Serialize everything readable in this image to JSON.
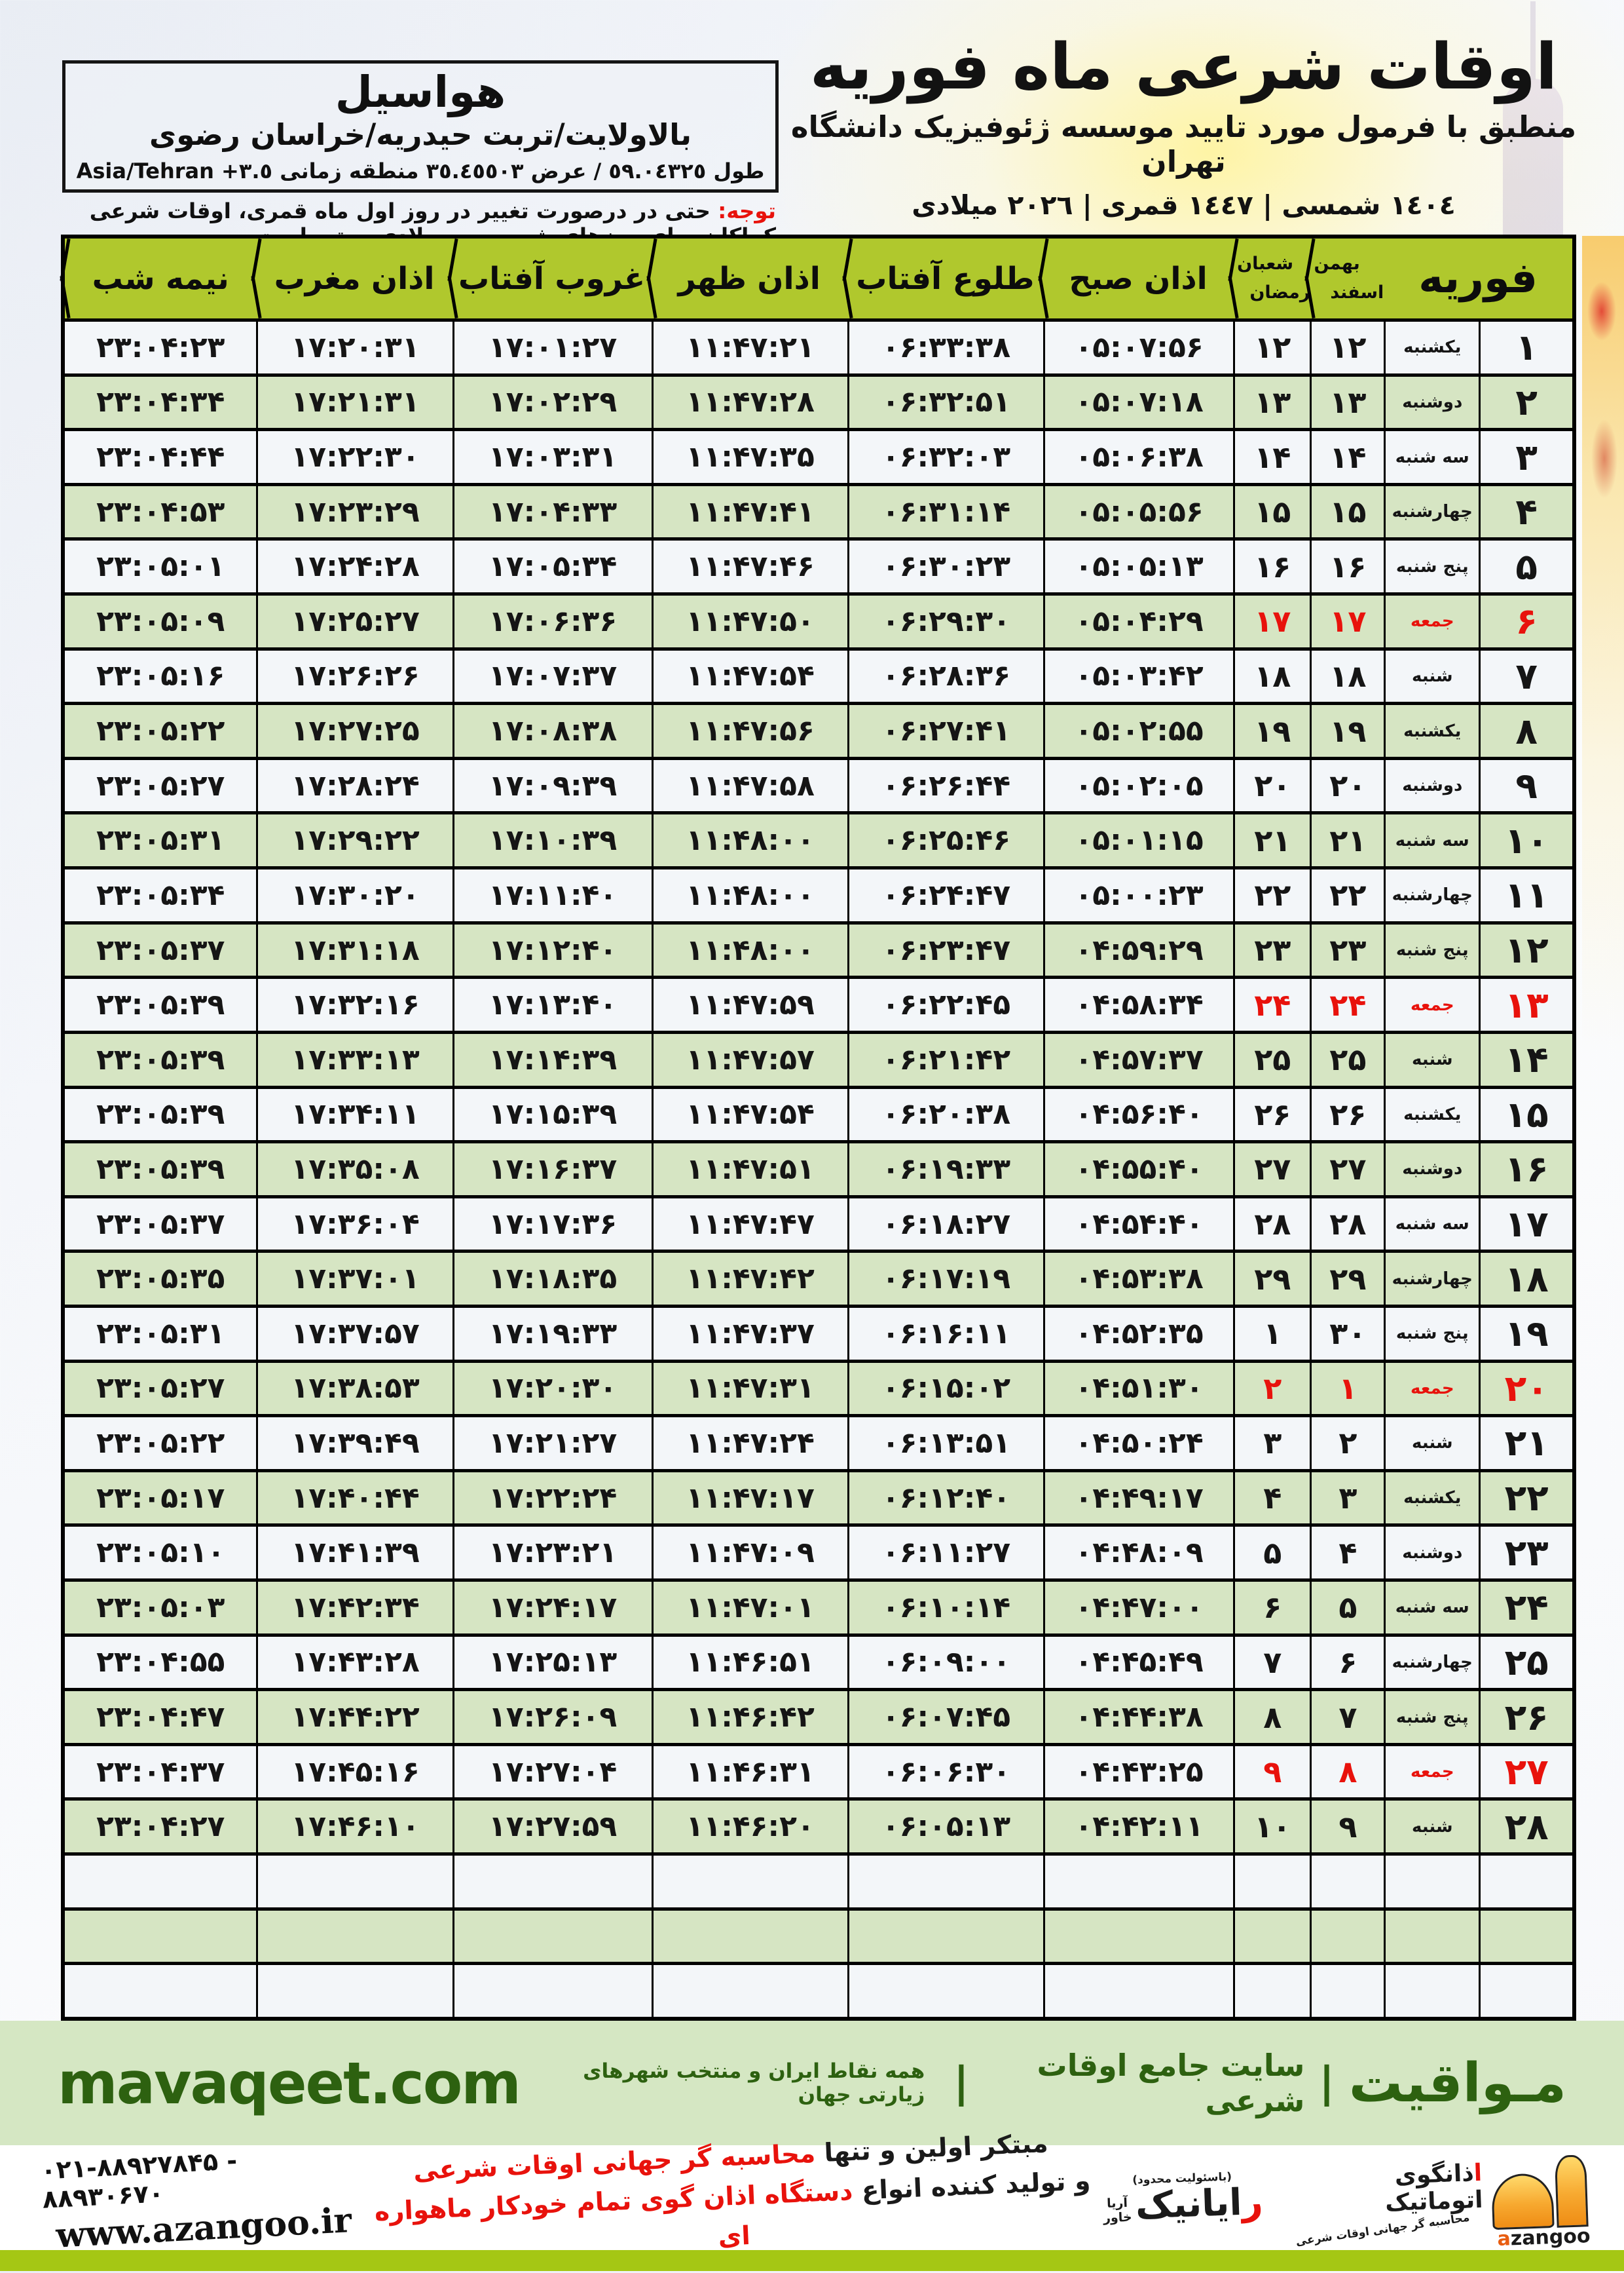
{
  "page": {
    "title": "اوقات شرعی ماه فوریه",
    "subtitle": "منطبق با فرمول مورد تایید موسسه ژئوفیزیک دانشگاه تهران",
    "calendars": "١٤٠٤ شمسی | ١٤٤٧ قمری | ٢٠٢٦ میلادی"
  },
  "location": {
    "name": "هواسیل",
    "region": "بالاولایت/تربت حیدریه/خراسان رضوی",
    "coords": "طول ٥٩.٠٤٣٢٥ / عرض ٣٥.٤٥٥٠٣ منطقه زمانی",
    "timezone": "Asia/Tehran +٣.٥"
  },
  "note": {
    "label": "توجه:",
    "text": " حتی در درصورت تغییر در روز اول ماه قمری، اوقات شرعی کماکان برای روزهای شمسی و میلادی معتبر است."
  },
  "table": {
    "col_feb": "فوریه",
    "col_jalali_top": "بهمن",
    "col_jalali_bottom": "اسفند",
    "col_hijri_top": "شعبان",
    "col_hijri_bottom": "رمضان",
    "col_azan_sobh": "اذان صبح",
    "col_sunrise": "طلوع آفتاب",
    "col_azan_zohr": "اذان ظهر",
    "col_sunset": "غروب آفتاب",
    "col_azan_maghreb": "اذان مغرب",
    "col_midnight": "نیمه شب",
    "empty_row_count": 3,
    "rows": [
      {
        "d": "۱",
        "wd": "یکشنبه",
        "j": "۱۲",
        "h": "۱۲",
        "sobh": "۰۵:۰۷:۵۶",
        "tolu": "۰۶:۳۳:۳۸",
        "zohr": "۱۱:۴۷:۲۱",
        "ghorub": "۱۷:۰۱:۲۷",
        "maghreb": "۱۷:۲۰:۳۱",
        "nime": "۲۳:۰۴:۲۳",
        "friday": false
      },
      {
        "d": "۲",
        "wd": "دوشنبه",
        "j": "۱۳",
        "h": "۱۳",
        "sobh": "۰۵:۰۷:۱۸",
        "tolu": "۰۶:۳۲:۵۱",
        "zohr": "۱۱:۴۷:۲۸",
        "ghorub": "۱۷:۰۲:۲۹",
        "maghreb": "۱۷:۲۱:۳۱",
        "nime": "۲۳:۰۴:۳۴",
        "friday": false
      },
      {
        "d": "۳",
        "wd": "سه شنبه",
        "j": "۱۴",
        "h": "۱۴",
        "sobh": "۰۵:۰۶:۳۸",
        "tolu": "۰۶:۳۲:۰۳",
        "zohr": "۱۱:۴۷:۳۵",
        "ghorub": "۱۷:۰۳:۳۱",
        "maghreb": "۱۷:۲۲:۳۰",
        "nime": "۲۳:۰۴:۴۴",
        "friday": false
      },
      {
        "d": "۴",
        "wd": "چهارشنبه",
        "j": "۱۵",
        "h": "۱۵",
        "sobh": "۰۵:۰۵:۵۶",
        "tolu": "۰۶:۳۱:۱۴",
        "zohr": "۱۱:۴۷:۴۱",
        "ghorub": "۱۷:۰۴:۳۳",
        "maghreb": "۱۷:۲۳:۲۹",
        "nime": "۲۳:۰۴:۵۳",
        "friday": false
      },
      {
        "d": "۵",
        "wd": "پنج شنبه",
        "j": "۱۶",
        "h": "۱۶",
        "sobh": "۰۵:۰۵:۱۳",
        "tolu": "۰۶:۳۰:۲۳",
        "zohr": "۱۱:۴۷:۴۶",
        "ghorub": "۱۷:۰۵:۳۴",
        "maghreb": "۱۷:۲۴:۲۸",
        "nime": "۲۳:۰۵:۰۱",
        "friday": false
      },
      {
        "d": "۶",
        "wd": "جمعه",
        "j": "۱۷",
        "h": "۱۷",
        "sobh": "۰۵:۰۴:۲۹",
        "tolu": "۰۶:۲۹:۳۰",
        "zohr": "۱۱:۴۷:۵۰",
        "ghorub": "۱۷:۰۶:۳۶",
        "maghreb": "۱۷:۲۵:۲۷",
        "nime": "۲۳:۰۵:۰۹",
        "friday": true
      },
      {
        "d": "۷",
        "wd": "شنبه",
        "j": "۱۸",
        "h": "۱۸",
        "sobh": "۰۵:۰۳:۴۲",
        "tolu": "۰۶:۲۸:۳۶",
        "zohr": "۱۱:۴۷:۵۴",
        "ghorub": "۱۷:۰۷:۳۷",
        "maghreb": "۱۷:۲۶:۲۶",
        "nime": "۲۳:۰۵:۱۶",
        "friday": false
      },
      {
        "d": "۸",
        "wd": "یکشنبه",
        "j": "۱۹",
        "h": "۱۹",
        "sobh": "۰۵:۰۲:۵۵",
        "tolu": "۰۶:۲۷:۴۱",
        "zohr": "۱۱:۴۷:۵۶",
        "ghorub": "۱۷:۰۸:۳۸",
        "maghreb": "۱۷:۲۷:۲۵",
        "nime": "۲۳:۰۵:۲۲",
        "friday": false
      },
      {
        "d": "۹",
        "wd": "دوشنبه",
        "j": "۲۰",
        "h": "۲۰",
        "sobh": "۰۵:۰۲:۰۵",
        "tolu": "۰۶:۲۶:۴۴",
        "zohr": "۱۱:۴۷:۵۸",
        "ghorub": "۱۷:۰۹:۳۹",
        "maghreb": "۱۷:۲۸:۲۴",
        "nime": "۲۳:۰۵:۲۷",
        "friday": false
      },
      {
        "d": "۱۰",
        "wd": "سه شنبه",
        "j": "۲۱",
        "h": "۲۱",
        "sobh": "۰۵:۰۱:۱۵",
        "tolu": "۰۶:۲۵:۴۶",
        "zohr": "۱۱:۴۸:۰۰",
        "ghorub": "۱۷:۱۰:۳۹",
        "maghreb": "۱۷:۲۹:۲۲",
        "nime": "۲۳:۰۵:۳۱",
        "friday": false
      },
      {
        "d": "۱۱",
        "wd": "چهارشنبه",
        "j": "۲۲",
        "h": "۲۲",
        "sobh": "۰۵:۰۰:۲۳",
        "tolu": "۰۶:۲۴:۴۷",
        "zohr": "۱۱:۴۸:۰۰",
        "ghorub": "۱۷:۱۱:۴۰",
        "maghreb": "۱۷:۳۰:۲۰",
        "nime": "۲۳:۰۵:۳۴",
        "friday": false
      },
      {
        "d": "۱۲",
        "wd": "پنج شنبه",
        "j": "۲۳",
        "h": "۲۳",
        "sobh": "۰۴:۵۹:۲۹",
        "tolu": "۰۶:۲۳:۴۷",
        "zohr": "۱۱:۴۸:۰۰",
        "ghorub": "۱۷:۱۲:۴۰",
        "maghreb": "۱۷:۳۱:۱۸",
        "nime": "۲۳:۰۵:۳۷",
        "friday": false
      },
      {
        "d": "۱۳",
        "wd": "جمعه",
        "j": "۲۴",
        "h": "۲۴",
        "sobh": "۰۴:۵۸:۳۴",
        "tolu": "۰۶:۲۲:۴۵",
        "zohr": "۱۱:۴۷:۵۹",
        "ghorub": "۱۷:۱۳:۴۰",
        "maghreb": "۱۷:۳۲:۱۶",
        "nime": "۲۳:۰۵:۳۹",
        "friday": true
      },
      {
        "d": "۱۴",
        "wd": "شنبه",
        "j": "۲۵",
        "h": "۲۵",
        "sobh": "۰۴:۵۷:۳۷",
        "tolu": "۰۶:۲۱:۴۲",
        "zohr": "۱۱:۴۷:۵۷",
        "ghorub": "۱۷:۱۴:۳۹",
        "maghreb": "۱۷:۳۳:۱۳",
        "nime": "۲۳:۰۵:۳۹",
        "friday": false
      },
      {
        "d": "۱۵",
        "wd": "یکشنبه",
        "j": "۲۶",
        "h": "۲۶",
        "sobh": "۰۴:۵۶:۴۰",
        "tolu": "۰۶:۲۰:۳۸",
        "zohr": "۱۱:۴۷:۵۴",
        "ghorub": "۱۷:۱۵:۳۹",
        "maghreb": "۱۷:۳۴:۱۱",
        "nime": "۲۳:۰۵:۳۹",
        "friday": false
      },
      {
        "d": "۱۶",
        "wd": "دوشنبه",
        "j": "۲۷",
        "h": "۲۷",
        "sobh": "۰۴:۵۵:۴۰",
        "tolu": "۰۶:۱۹:۳۳",
        "zohr": "۱۱:۴۷:۵۱",
        "ghorub": "۱۷:۱۶:۳۷",
        "maghreb": "۱۷:۳۵:۰۸",
        "nime": "۲۳:۰۵:۳۹",
        "friday": false
      },
      {
        "d": "۱۷",
        "wd": "سه شنبه",
        "j": "۲۸",
        "h": "۲۸",
        "sobh": "۰۴:۵۴:۴۰",
        "tolu": "۰۶:۱۸:۲۷",
        "zohr": "۱۱:۴۷:۴۷",
        "ghorub": "۱۷:۱۷:۳۶",
        "maghreb": "۱۷:۳۶:۰۴",
        "nime": "۲۳:۰۵:۳۷",
        "friday": false
      },
      {
        "d": "۱۸",
        "wd": "چهارشنبه",
        "j": "۲۹",
        "h": "۲۹",
        "sobh": "۰۴:۵۳:۳۸",
        "tolu": "۰۶:۱۷:۱۹",
        "zohr": "۱۱:۴۷:۴۲",
        "ghorub": "۱۷:۱۸:۳۵",
        "maghreb": "۱۷:۳۷:۰۱",
        "nime": "۲۳:۰۵:۳۵",
        "friday": false
      },
      {
        "d": "۱۹",
        "wd": "پنج شنبه",
        "j": "۳۰",
        "h": "۱",
        "sobh": "۰۴:۵۲:۳۵",
        "tolu": "۰۶:۱۶:۱۱",
        "zohr": "۱۱:۴۷:۳۷",
        "ghorub": "۱۷:۱۹:۳۳",
        "maghreb": "۱۷:۳۷:۵۷",
        "nime": "۲۳:۰۵:۳۱",
        "friday": false
      },
      {
        "d": "۲۰",
        "wd": "جمعه",
        "j": "۱",
        "h": "۲",
        "sobh": "۰۴:۵۱:۳۰",
        "tolu": "۰۶:۱۵:۰۲",
        "zohr": "۱۱:۴۷:۳۱",
        "ghorub": "۱۷:۲۰:۳۰",
        "maghreb": "۱۷:۳۸:۵۳",
        "nime": "۲۳:۰۵:۲۷",
        "friday": true
      },
      {
        "d": "۲۱",
        "wd": "شنبه",
        "j": "۲",
        "h": "۳",
        "sobh": "۰۴:۵۰:۲۴",
        "tolu": "۰۶:۱۳:۵۱",
        "zohr": "۱۱:۴۷:۲۴",
        "ghorub": "۱۷:۲۱:۲۷",
        "maghreb": "۱۷:۳۹:۴۹",
        "nime": "۲۳:۰۵:۲۲",
        "friday": false
      },
      {
        "d": "۲۲",
        "wd": "یکشنبه",
        "j": "۳",
        "h": "۴",
        "sobh": "۰۴:۴۹:۱۷",
        "tolu": "۰۶:۱۲:۴۰",
        "zohr": "۱۱:۴۷:۱۷",
        "ghorub": "۱۷:۲۲:۲۴",
        "maghreb": "۱۷:۴۰:۴۴",
        "nime": "۲۳:۰۵:۱۷",
        "friday": false
      },
      {
        "d": "۲۳",
        "wd": "دوشنبه",
        "j": "۴",
        "h": "۵",
        "sobh": "۰۴:۴۸:۰۹",
        "tolu": "۰۶:۱۱:۲۷",
        "zohr": "۱۱:۴۷:۰۹",
        "ghorub": "۱۷:۲۳:۲۱",
        "maghreb": "۱۷:۴۱:۳۹",
        "nime": "۲۳:۰۵:۱۰",
        "friday": false
      },
      {
        "d": "۲۴",
        "wd": "سه شنبه",
        "j": "۵",
        "h": "۶",
        "sobh": "۰۴:۴۷:۰۰",
        "tolu": "۰۶:۱۰:۱۴",
        "zohr": "۱۱:۴۷:۰۱",
        "ghorub": "۱۷:۲۴:۱۷",
        "maghreb": "۱۷:۴۲:۳۴",
        "nime": "۲۳:۰۵:۰۳",
        "friday": false
      },
      {
        "d": "۲۵",
        "wd": "چهارشنبه",
        "j": "۶",
        "h": "۷",
        "sobh": "۰۴:۴۵:۴۹",
        "tolu": "۰۶:۰۹:۰۰",
        "zohr": "۱۱:۴۶:۵۱",
        "ghorub": "۱۷:۲۵:۱۳",
        "maghreb": "۱۷:۴۳:۲۸",
        "nime": "۲۳:۰۴:۵۵",
        "friday": false
      },
      {
        "d": "۲۶",
        "wd": "پنج شنبه",
        "j": "۷",
        "h": "۸",
        "sobh": "۰۴:۴۴:۳۸",
        "tolu": "۰۶:۰۷:۴۵",
        "zohr": "۱۱:۴۶:۴۲",
        "ghorub": "۱۷:۲۶:۰۹",
        "maghreb": "۱۷:۴۴:۲۲",
        "nime": "۲۳:۰۴:۴۷",
        "friday": false
      },
      {
        "d": "۲۷",
        "wd": "جمعه",
        "j": "۸",
        "h": "۹",
        "sobh": "۰۴:۴۳:۲۵",
        "tolu": "۰۶:۰۶:۳۰",
        "zohr": "۱۱:۴۶:۳۱",
        "ghorub": "۱۷:۲۷:۰۴",
        "maghreb": "۱۷:۴۵:۱۶",
        "nime": "۲۳:۰۴:۳۷",
        "friday": true
      },
      {
        "d": "۲۸",
        "wd": "شنبه",
        "j": "۹",
        "h": "۱۰",
        "sobh": "۰۴:۴۲:۱۱",
        "tolu": "۰۶:۰۵:۱۳",
        "zohr": "۱۱:۴۶:۲۰",
        "ghorub": "۱۷:۲۷:۵۹",
        "maghreb": "۱۷:۴۶:۱۰",
        "nime": "۲۳:۰۴:۲۷",
        "friday": false
      }
    ]
  },
  "footer": {
    "site_fa": "مـواقیت",
    "divider": "|",
    "tagline_bold": "سایت جامع اوقات شرعی",
    "tagline_rest": "همه نقاط ایران و منتخب شهرهای زیارتی جهان",
    "site_en": "mavaqeet.com"
  },
  "bottom": {
    "phones": "۰۲۱-۸۸۹۲۷۸۴۵ - ۸۸۹۳۰۶۷۰",
    "website": "www.azangoo.ir",
    "claim1_black": "مبتکر اولین و تنها ",
    "claim1_red": "محاسبه گر جهانی اوقات شرعی",
    "claim2_black": "و تولید کننده انواع ",
    "claim2_red": "دستگاه اذان گوی تمام خودکار ماهواره ای",
    "rayanik_small": "(باسئولیت محدود)",
    "rayanik_initial": "ر",
    "rayanik_rest": "ایانیک",
    "rayanik_sub1": "آریا",
    "rayanik_sub2": "خاور",
    "azangoo_fa_initial": "ا",
    "azangoo_fa_rest": "ذانگوی اتوماتیک",
    "azangoo_en_initial": "a",
    "azangoo_en_rest": "zangoo",
    "azangoo_tagline": "محاسبه گر جهانی اوقات شرعی"
  },
  "colors": {
    "header_green": "#b0c82d",
    "row_green": "#d6e5c3",
    "row_white": "#f3f6f9",
    "accent_red": "#e8120c",
    "footer_band_green": "#d5e7c3",
    "brand_dark_green": "#2d6110",
    "bottom_band_chartreuse": "#a5c714",
    "border_black": "#000000"
  }
}
